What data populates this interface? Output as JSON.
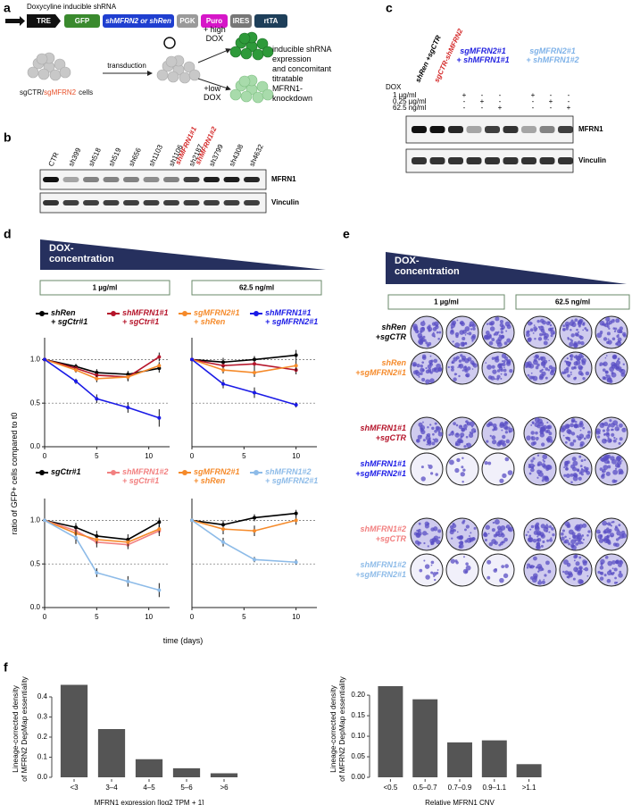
{
  "panel_a": {
    "label": "a",
    "title": "Doxycyline inducible shRNA",
    "construct": [
      "TRE",
      "GFP",
      "shMFRN2 or shRen",
      "PGK",
      "Puro",
      "IRES",
      "rtTA"
    ],
    "transduction": "transduction",
    "cells": [
      "sgCTR/",
      "sgMFRN2",
      "cells"
    ],
    "high_dox": "+ high\nDOX",
    "low_dox": "+low\nDOX",
    "outcome": "inducible shRNA\nexpression\nand concomitant\ntitratable\nMFRN1-\nknockdown"
  },
  "panel_b": {
    "label": "b",
    "lanes": [
      "CTR",
      "sh399",
      "sh518",
      "sh519",
      "sh656",
      "sh1103",
      "sh1106",
      "sh2187",
      "sh3799",
      "sh4308",
      "sh4632"
    ],
    "highlight": [
      {
        "lane": "sh1106",
        "label": "shMFRN1#1"
      },
      {
        "lane": "sh2187",
        "label": "shMFRN1#2"
      }
    ],
    "blots": [
      "MFRN1",
      "Vinculin"
    ]
  },
  "panel_c": {
    "label": "c",
    "headers": [
      {
        "text": "shRen +sgCTR",
        "color": "#000000"
      },
      {
        "text": "sgCTR-shMFRN2",
        "color": "#d42a2a"
      }
    ],
    "group_headers": [
      {
        "text": "sgMFRN2#1\n+ shMFRN1#1",
        "color": "#2323e0"
      },
      {
        "text": "sgMFRN2#1\n+ shMFRN1#2",
        "color": "#7fb2e8"
      }
    ],
    "dox": "DOX",
    "concentrations": [
      "1 µg/ml",
      "0.25 µg/ml",
      "62.5 ng/ml"
    ],
    "dox_matrix": [
      [
        "+",
        "-",
        "-",
        "+",
        "-",
        "-"
      ],
      [
        "-",
        "+",
        "-",
        "-",
        "+",
        "-"
      ],
      [
        "-",
        "-",
        "+",
        "-",
        "-",
        "+"
      ]
    ],
    "blots": [
      "MFRN1",
      "Vinculin"
    ]
  },
  "panel_d": {
    "label": "d",
    "dox": "DOX-\nconcentration",
    "concentrations": [
      "1 µg/ml",
      "62.5 ng/ml"
    ],
    "y_label": "ratio of GFP+ cells compared to t0",
    "x_label": "time (days)"
  },
  "panel_e": {
    "label": "e",
    "dox": "DOX-\nconcentration",
    "concentrations": [
      "1 µg/ml",
      "62.5 ng/ml"
    ],
    "rows": [
      {
        "label": "shRen\n+sgCTR",
        "color": "#000000"
      },
      {
        "label": "shRen\n+sgMFRN2#1",
        "color": "#f58a2a"
      },
      {
        "label": "shMFRN1#1\n+sgCTR",
        "color": "#b5142a"
      },
      {
        "label": "shMFRN1#1\n+sgMFRN2#1",
        "color": "#1a1ae6"
      },
      {
        "label": "shMFRN1#2\n+sgCTR",
        "color": "#f28080"
      },
      {
        "label": "shMFRN1#2\n+sgMFRN2#1",
        "color": "#8dbbe8"
      }
    ]
  },
  "panel_f": {
    "label": "f"
  },
  "chart_data": [
    {
      "type": "line",
      "x": [
        0,
        3,
        5,
        8,
        11
      ],
      "xlim": [
        0,
        12
      ],
      "xticks": [
        0,
        5,
        10
      ],
      "ylim": [
        0,
        1.25
      ],
      "yticks": [
        {
          "value": 0,
          "label": "0.0"
        },
        0.5,
        {
          "value": 1,
          "label": "1.0"
        }
      ],
      "hlines": [
        0.5,
        1
      ],
      "series": [
        {
          "name": "shRen\n+ sgCtr#1",
          "color": "#000000",
          "values": [
            1,
            0.92,
            0.85,
            0.83,
            0.9
          ],
          "errors": [
            0,
            0.03,
            0.04,
            0.04,
            0.05
          ]
        },
        {
          "name": "shMFRN1#1\n+ sgCtr#1",
          "color": "#b5142a",
          "values": [
            1,
            0.9,
            0.82,
            0.8,
            1.03
          ],
          "errors": [
            0,
            0.04,
            0.05,
            0.05,
            0.05
          ]
        },
        {
          "name": "sgMFRN2#1\n+ shRen",
          "color": "#f58a2a",
          "values": [
            1,
            0.88,
            0.78,
            0.8,
            0.93
          ],
          "errors": [
            0,
            0.03,
            0.04,
            0.04,
            0.04
          ]
        },
        {
          "name": "shMFRN1#1\n+ sgMFRN2#1",
          "color": "#1a1ae6",
          "values": [
            1,
            0.75,
            0.55,
            0.45,
            0.33
          ],
          "errors": [
            0,
            0.03,
            0.05,
            0.06,
            0.1
          ]
        }
      ]
    },
    {
      "type": "line",
      "x": [
        0,
        3,
        6,
        10
      ],
      "xlim": [
        0,
        12
      ],
      "xticks": [
        0,
        5,
        10
      ],
      "ylim": [
        0,
        1.25
      ],
      "hlines": [
        0.5,
        1
      ],
      "series": [
        {
          "color": "#000000",
          "values": [
            1,
            0.97,
            1.0,
            1.05
          ],
          "errors": [
            0,
            0.05,
            0.04,
            0.06
          ]
        },
        {
          "color": "#b5142a",
          "values": [
            1,
            0.93,
            0.95,
            0.88
          ],
          "errors": [
            0,
            0.05,
            0.06,
            0.05
          ]
        },
        {
          "color": "#f58a2a",
          "values": [
            1,
            0.88,
            0.85,
            0.93
          ],
          "errors": [
            0,
            0.04,
            0.05,
            0.06
          ]
        },
        {
          "color": "#1a1ae6",
          "values": [
            1,
            0.72,
            0.62,
            0.48
          ],
          "errors": [
            0,
            0.05,
            0.06,
            0.03
          ]
        }
      ]
    },
    {
      "type": "line",
      "x": [
        0,
        3,
        5,
        8,
        11
      ],
      "xlim": [
        0,
        12
      ],
      "xticks": [
        0,
        5,
        10
      ],
      "ylim": [
        0,
        1.25
      ],
      "yticks": [
        {
          "value": 0,
          "label": "0.0"
        },
        0.5,
        {
          "value": 1,
          "label": "1.0"
        }
      ],
      "hlines": [
        0.5,
        1
      ],
      "series": [
        {
          "name": "sgCtr#1",
          "color": "#000000",
          "values": [
            1,
            0.92,
            0.82,
            0.78,
            0.98
          ],
          "errors": [
            0,
            0.05,
            0.06,
            0.06,
            0.05
          ]
        },
        {
          "name": "shMFRN1#2\n+ sgCtr#1",
          "color": "#f28080",
          "values": [
            1,
            0.88,
            0.75,
            0.72,
            0.88
          ],
          "errors": [
            0,
            0.05,
            0.06,
            0.05,
            0.06
          ]
        },
        {
          "name": "sgMFRN2#1\n+ shRen",
          "color": "#f58a2a",
          "values": [
            1,
            0.85,
            0.78,
            0.75,
            0.9
          ],
          "errors": [
            0,
            0.05,
            0.05,
            0.05,
            0.05
          ]
        },
        {
          "name": "shMFRN1#2\n+ sgMFRN2#1",
          "color": "#8dbbe8",
          "values": [
            1,
            0.8,
            0.4,
            0.3,
            0.2
          ],
          "errors": [
            0,
            0.07,
            0.05,
            0.06,
            0.08
          ]
        }
      ]
    },
    {
      "type": "line",
      "x": [
        0,
        3,
        6,
        10
      ],
      "xlim": [
        0,
        12
      ],
      "xticks": [
        0,
        5,
        10
      ],
      "ylim": [
        0,
        1.25
      ],
      "hlines": [
        0.5,
        1
      ],
      "series": [
        {
          "color": "#000000",
          "values": [
            1,
            0.95,
            1.03,
            1.08
          ],
          "errors": [
            0,
            0.05,
            0.04,
            0.04
          ]
        },
        {
          "color": "#f58a2a",
          "values": [
            1,
            0.9,
            0.88,
            1.0
          ],
          "errors": [
            0,
            0.06,
            0.06,
            0.05
          ]
        },
        {
          "color": "#8dbbe8",
          "values": [
            1,
            0.75,
            0.55,
            0.52
          ],
          "errors": [
            0,
            0.05,
            0.03,
            0.03
          ]
        }
      ]
    },
    {
      "type": "bar",
      "categories": [
        "<3",
        "3–4",
        "4–5",
        "5–6",
        ">6"
      ],
      "values": [
        0.46,
        0.24,
        0.09,
        0.045,
        0.02
      ],
      "color": "#555555",
      "ylim": [
        0,
        0.48
      ],
      "yticks": [
        {
          "value": 0,
          "label": "0.0"
        },
        0.1,
        0.2,
        0.3,
        0.4
      ],
      "y_label": "Lineage-corrected density\nof MFRN2 DepMap essentiality",
      "x_label": "MFRN1 expression [log2 TPM + 1]"
    },
    {
      "type": "bar",
      "categories": [
        "<0.5",
        "0.5–0.7",
        "0.7–0.9",
        "0.9–1.1",
        ">1.1"
      ],
      "values": [
        0.222,
        0.19,
        0.085,
        0.09,
        0.032
      ],
      "color": "#555555",
      "ylim": [
        0,
        0.235
      ],
      "yticks": [
        {
          "value": 0,
          "label": "0.00"
        },
        0.05,
        {
          "value": 0.1,
          "label": "0.10"
        },
        0.15,
        {
          "value": 0.2,
          "label": "0.20"
        }
      ],
      "y_label": "Lineage-corrected density\nof MFRN2 DepMap essentiality",
      "x_label": "Relative MFRN1 CNV"
    }
  ]
}
